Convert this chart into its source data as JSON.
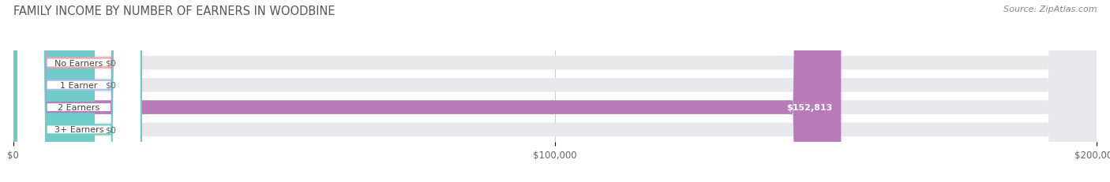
{
  "title": "FAMILY INCOME BY NUMBER OF EARNERS IN WOODBINE",
  "source": "Source: ZipAtlas.com",
  "categories": [
    "No Earners",
    "1 Earner",
    "2 Earners",
    "3+ Earners"
  ],
  "values": [
    0,
    0,
    152813,
    0
  ],
  "bar_colors": [
    "#f4a0a8",
    "#a8c0e8",
    "#b87ab8",
    "#70ccc8"
  ],
  "value_labels": [
    "$0",
    "$0",
    "$152,813",
    "$0"
  ],
  "xlim": [
    0,
    200000
  ],
  "xticks": [
    0,
    100000,
    200000
  ],
  "xtick_labels": [
    "$0",
    "$100,000",
    "$200,000"
  ],
  "background_color": "#ffffff",
  "bar_bg_color": "#e8e8ec",
  "title_fontsize": 10.5,
  "bar_height": 0.62,
  "figsize": [
    14.06,
    2.32
  ]
}
